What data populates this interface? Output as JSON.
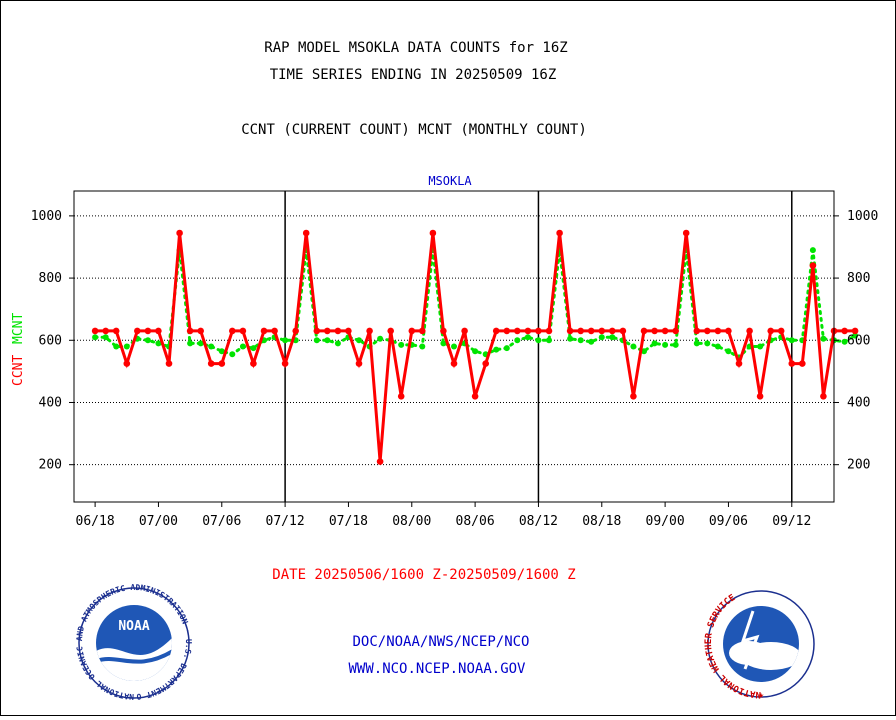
{
  "header": {
    "title_line1": "RAP MODEL MSOKLA DATA COUNTS for 16Z",
    "title_line2": "TIME SERIES ENDING IN 20250509 16Z",
    "subtitle": "CCNT (CURRENT COUNT) MCNT (MONTHLY COUNT)"
  },
  "footer": {
    "date_range": "DATE 20250506/1600 Z-20250509/1600 Z",
    "link1": "DOC/NOAA/NWS/NCEP/NCO",
    "link2": "WWW.NCO.NCEP.NOAA.GOV"
  },
  "logos": {
    "noaa_ring_text": "NATIONAL OCEANIC AND ATMOSPHERIC ADMINISTRATION · U.S. DEPARTMENT OF COMMERCE",
    "noaa_center": "NOAA",
    "nws_ring_text": "NATIONAL WEATHER SERVICE"
  },
  "colors": {
    "ccnt": "#ff0000",
    "mcnt": "#00e400",
    "station": "#0000cc",
    "footer_link": "#0000cc",
    "date_text": "#ff0000"
  },
  "chart_data": {
    "type": "line",
    "station_label": "MSOKLA",
    "xlabel": "",
    "ylabel_left_ccnt": "CCNT",
    "ylabel_left_mcnt": "MCNT",
    "x_ticks": [
      "06/18",
      "07/00",
      "07/06",
      "07/12",
      "07/18",
      "08/00",
      "08/06",
      "08/12",
      "08/18",
      "09/00",
      "09/06",
      "09/12"
    ],
    "y_ticks": [
      200,
      400,
      600,
      800,
      1000
    ],
    "y_ticks_left": [
      "200",
      "400",
      "600",
      "800",
      "1000"
    ],
    "y_ticks_right": [
      "200",
      "400",
      "600",
      "800",
      "1000"
    ],
    "ylim": [
      80,
      1080
    ],
    "x_hours_per_tick": 6,
    "x_start_offset_hours": -2,
    "x_end_offset_hours": 70,
    "day_boundaries": [
      "07/12",
      "08/12",
      "09/12"
    ],
    "grid": "horizontal dotted",
    "series": [
      {
        "name": "CCNT",
        "color": "#ff0000",
        "values": [
          630,
          630,
          630,
          525,
          630,
          630,
          630,
          525,
          945,
          630,
          630,
          525,
          525,
          630,
          630,
          525,
          630,
          630,
          525,
          630,
          945,
          630,
          630,
          630,
          630,
          525,
          630,
          210,
          630,
          420,
          630,
          630,
          945,
          630,
          525,
          630,
          420,
          525,
          630,
          630,
          630,
          630,
          630,
          630,
          945,
          630,
          630,
          630,
          630,
          630,
          630,
          420,
          630,
          630,
          630,
          630,
          945,
          630,
          630,
          630,
          630,
          525,
          630,
          420,
          630,
          630,
          525,
          525,
          840,
          420,
          630,
          630,
          630
        ]
      },
      {
        "name": "MCNT",
        "color": "#00e400",
        "values": [
          610,
          610,
          580,
          580,
          605,
          600,
          590,
          580,
          890,
          590,
          590,
          580,
          565,
          555,
          580,
          575,
          600,
          610,
          600,
          600,
          890,
          600,
          600,
          590,
          610,
          600,
          580,
          605,
          600,
          585,
          585,
          580,
          890,
          590,
          580,
          590,
          565,
          555,
          570,
          575,
          600,
          610,
          600,
          600,
          890,
          605,
          600,
          595,
          610,
          610,
          600,
          580,
          565,
          590,
          585,
          585,
          890,
          590,
          590,
          580,
          565,
          545,
          580,
          580,
          600,
          610,
          600,
          600,
          890,
          605,
          600,
          595,
          615
        ]
      }
    ]
  }
}
